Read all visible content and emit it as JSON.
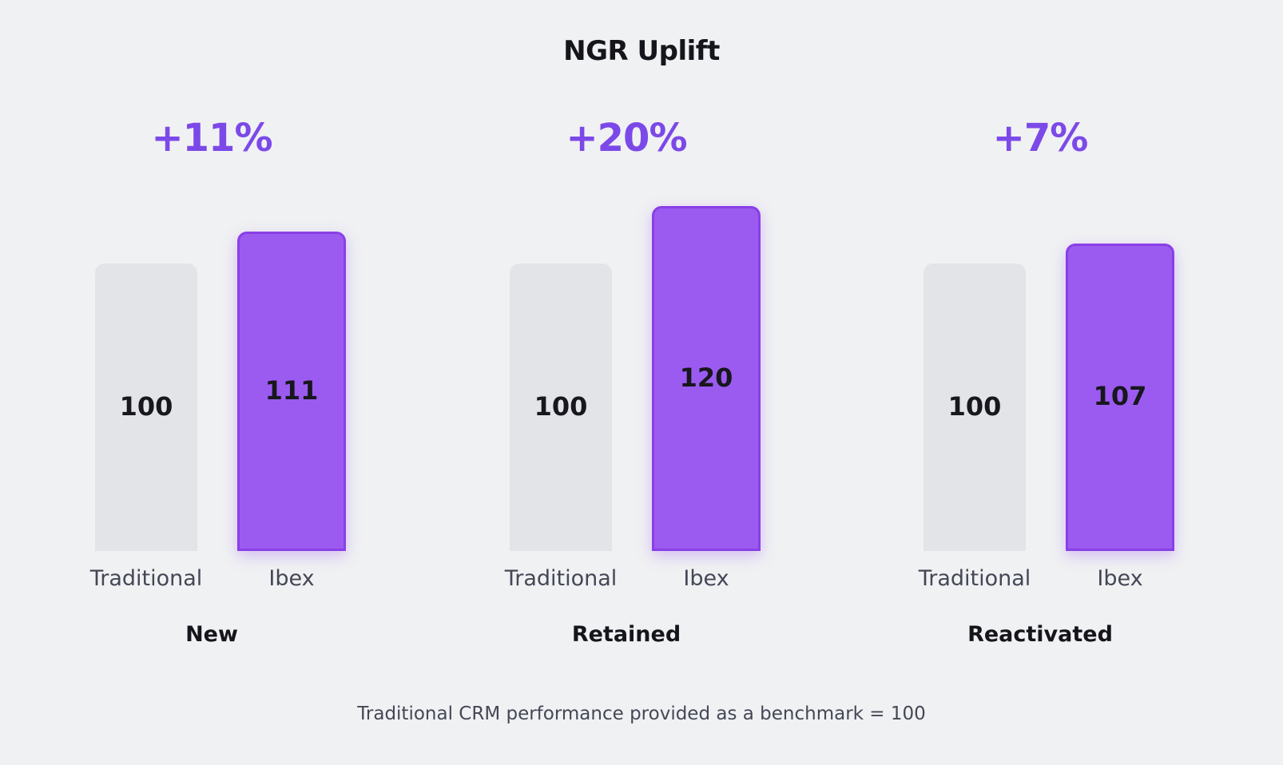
{
  "chart_data": {
    "type": "bar",
    "title": "NGR Uplift",
    "series_labels": [
      "Traditional",
      "Ibex"
    ],
    "groups": [
      {
        "category": "New",
        "uplift": "+11%",
        "traditional": 100,
        "ibex": 111
      },
      {
        "category": "Retained",
        "uplift": "+20%",
        "traditional": 100,
        "ibex": 120
      },
      {
        "category": "Reactivated",
        "uplift": "+7%",
        "traditional": 100,
        "ibex": 107
      }
    ],
    "footnote": "Traditional CRM performance provided as a benchmark = 100",
    "colors": {
      "traditional": "#e3e4e8",
      "ibex": "#9b5bf0",
      "ibex_border": "#8a3fe6",
      "uplift_text": "#7c49e8"
    }
  }
}
